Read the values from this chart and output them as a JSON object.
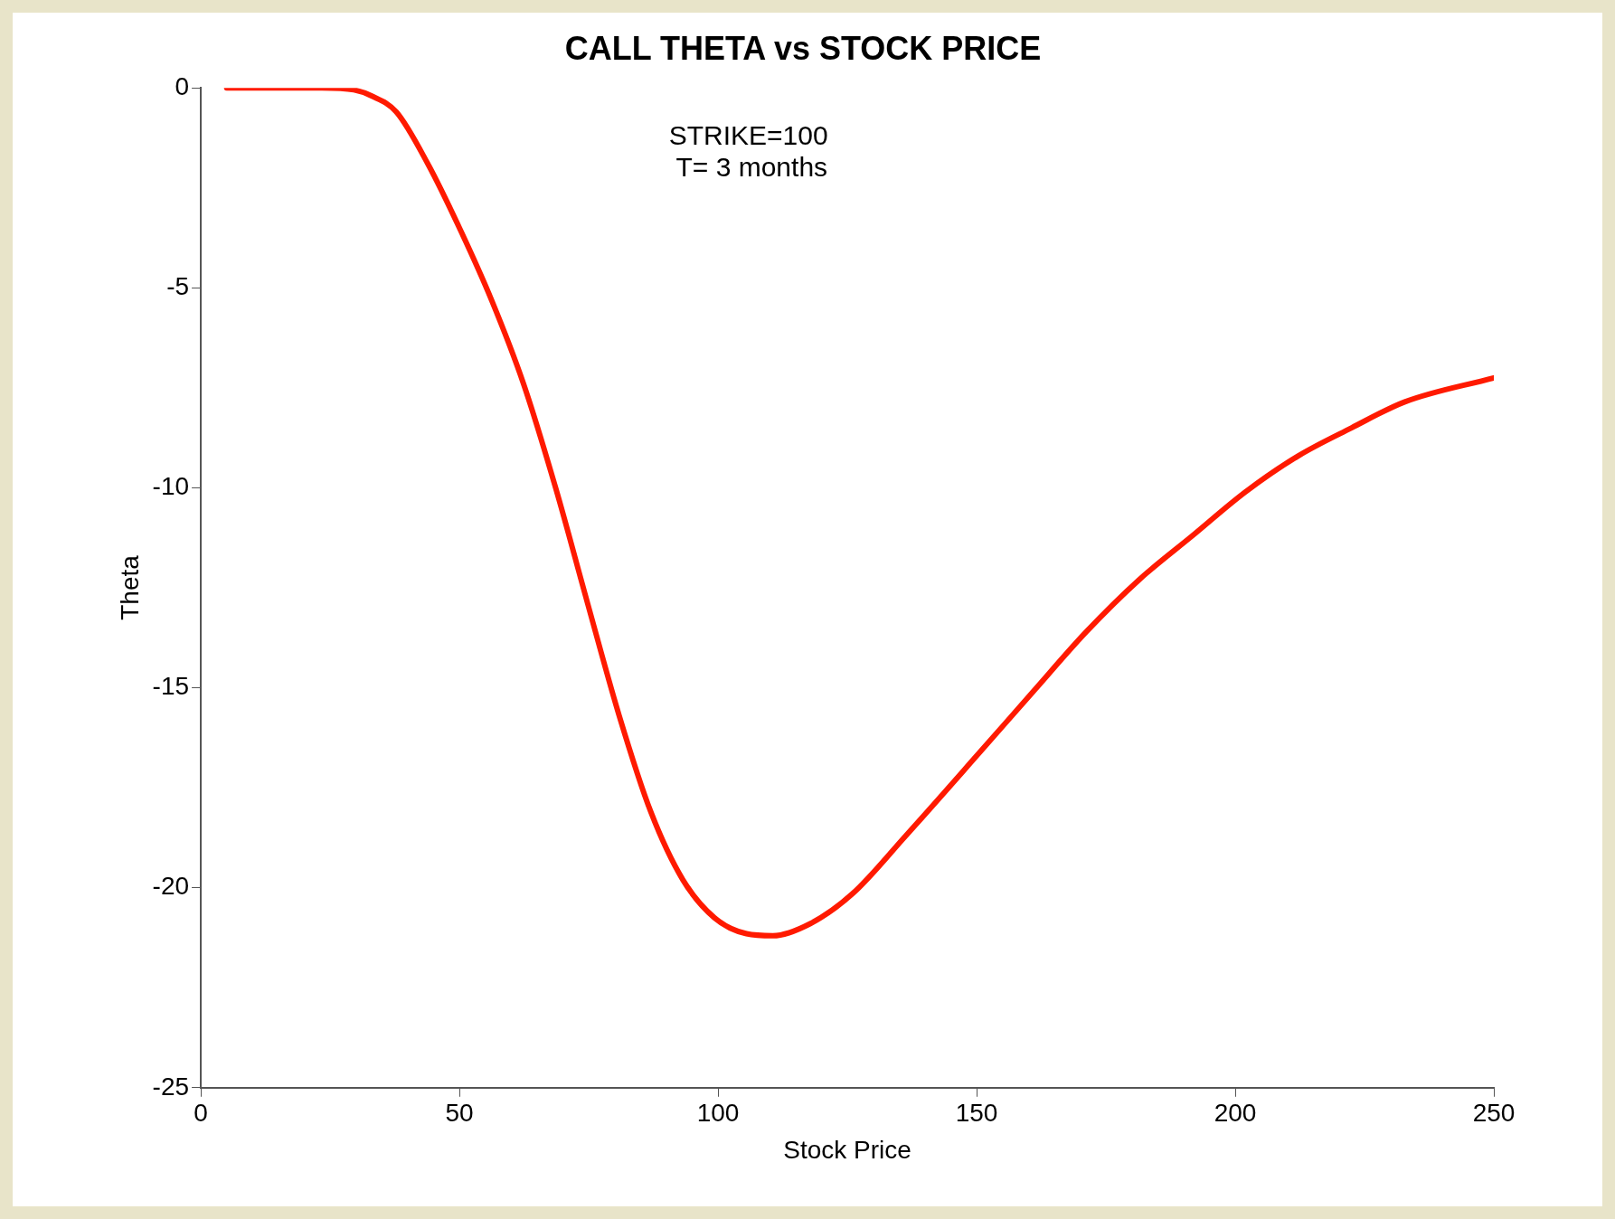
{
  "chart_data": {
    "type": "line",
    "title": "CALL THETA vs STOCK PRICE",
    "xlabel": "Stock Price",
    "ylabel": "Theta",
    "annotations": [
      "STRIKE=100",
      " T= 3 months"
    ],
    "xlim": [
      0,
      250
    ],
    "xticks": [
      0,
      50,
      100,
      150,
      200,
      250
    ],
    "ylim": [
      -25,
      0
    ],
    "yticks": [
      -25,
      -20,
      -15,
      -10,
      -5,
      0
    ],
    "grid": false,
    "legend": false,
    "marker": "none",
    "line_style": "solid",
    "series": [
      {
        "color": "#ff1a00",
        "x": [
          5,
          15,
          23.4,
          29.6,
          33,
          37.8,
          43.9,
          50,
          56.2,
          62.4,
          68.6,
          74.7,
          80.9,
          87,
          93.2,
          99.3,
          105.5,
          110.6,
          117.8,
          126,
          136.3,
          150.7,
          160.9,
          171.2,
          181.4,
          191.7,
          202,
          212.2,
          222.5,
          232.8,
          250
        ],
        "values": [
          0,
          0,
          0,
          -0.05,
          -0.2,
          -0.6,
          -1.9,
          -3.5,
          -5.3,
          -7.4,
          -10,
          -12.85,
          -15.7,
          -18.1,
          -19.8,
          -20.75,
          -21.15,
          -21.2,
          -20.9,
          -20.15,
          -18.7,
          -16.6,
          -15.1,
          -13.6,
          -12.3,
          -11.2,
          -10.1,
          -9.2,
          -8.5,
          -7.85,
          -7.25
        ]
      }
    ]
  }
}
